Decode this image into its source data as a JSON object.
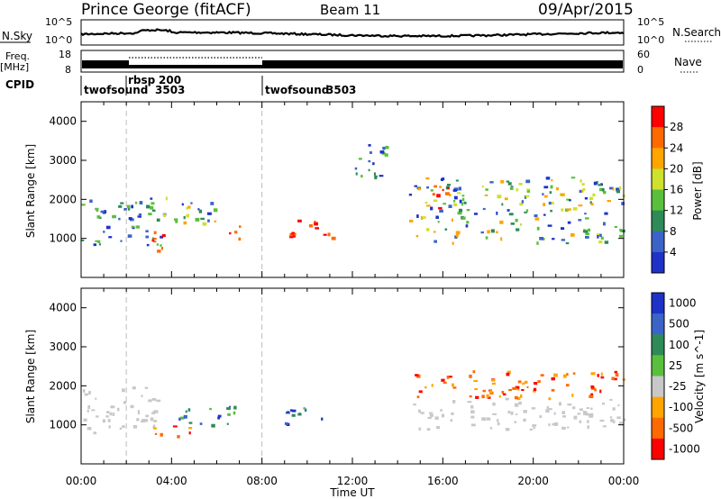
{
  "header": {
    "station": "Prince George (fitACF)",
    "beam": "Beam 11",
    "date": "09/Apr/2015"
  },
  "noise_panel": {
    "left_label": "N.Sky",
    "right_label": "N.Search",
    "left_ticks": [
      "10^5",
      "10^0"
    ],
    "right_ticks": [
      "10^5",
      "10^0"
    ]
  },
  "freq_panel": {
    "left_label_1": "Freq.",
    "left_label_2": "[MHz]",
    "right_label": "Nave",
    "left_ticks": [
      "18",
      "8"
    ],
    "right_ticks": [
      "60",
      "0"
    ]
  },
  "cpid": {
    "label": "CPID",
    "segments": [
      {
        "start": 0,
        "end": 2,
        "name": "twofsound",
        "id": "3503"
      },
      {
        "start": 2,
        "end": 8,
        "name": "rbsp",
        "id": "200"
      },
      {
        "start": 8,
        "end": 24,
        "name": "twofsound",
        "id": "3503"
      }
    ]
  },
  "colors": {
    "power": [
      "#1e32c8",
      "#3c64c8",
      "#2e8b57",
      "#5abf3c",
      "#cde12d",
      "#ffa500",
      "#ff6a00",
      "#ff0000"
    ],
    "velocity": [
      "#1e32c8",
      "#3c64c8",
      "#2e8b57",
      "#5abf3c",
      "#c8c8c8",
      "#ffa500",
      "#ff6a00",
      "#ff0000"
    ]
  },
  "chart_data": [
    {
      "type": "heatmap",
      "title": "Power",
      "ylabel": "Slant Range [km]",
      "ylim": [
        0,
        4500
      ],
      "xlim": [
        0,
        24
      ],
      "yticks": [
        "1000",
        "2000",
        "3000",
        "4000"
      ],
      "colorbar": {
        "label": "Power [dB]",
        "ticks": [
          "4",
          "8",
          "12",
          "16",
          "20",
          "24",
          "28"
        ],
        "range": [
          0,
          30
        ]
      },
      "echo_regions": [
        {
          "t0": 0.0,
          "t1": 3.5,
          "r0": 800,
          "r1": 2100,
          "level": "low"
        },
        {
          "t0": 2.5,
          "t1": 3.6,
          "r0": 600,
          "r1": 1200,
          "level": "high"
        },
        {
          "t0": 3.4,
          "t1": 6.0,
          "r0": 1400,
          "r1": 2200,
          "level": "mid"
        },
        {
          "t0": 6.5,
          "t1": 7.2,
          "r0": 900,
          "r1": 1400,
          "level": "high"
        },
        {
          "t0": 9.2,
          "t1": 11.2,
          "r0": 900,
          "r1": 1500,
          "level": "high"
        },
        {
          "t0": 12.0,
          "t1": 13.8,
          "r0": 2600,
          "r1": 3500,
          "level": "low"
        },
        {
          "t0": 14.5,
          "t1": 24.0,
          "r0": 900,
          "r1": 2600,
          "level": "mid"
        },
        {
          "t0": 15.5,
          "t1": 16.5,
          "r0": 1800,
          "r1": 2400,
          "level": "high"
        }
      ]
    },
    {
      "type": "heatmap",
      "title": "Velocity",
      "xlabel": "Time UT",
      "ylabel": "Slant Range [km]",
      "ylim": [
        0,
        4500
      ],
      "xlim": [
        0,
        24
      ],
      "xticks": [
        "00:00",
        "04:00",
        "08:00",
        "12:00",
        "16:00",
        "20:00",
        "00:00"
      ],
      "yticks": [
        "1000",
        "2000",
        "3000",
        "4000"
      ],
      "colorbar": {
        "label": "Velocity [m s^-1]",
        "ticks": [
          "1000",
          "500",
          "100",
          "25",
          "-25",
          "-100",
          "-500",
          "-1000"
        ]
      },
      "echo_regions": [
        {
          "t0": 0.0,
          "t1": 3.5,
          "r0": 800,
          "r1": 2000,
          "level": "ground"
        },
        {
          "t0": 3.0,
          "t1": 5.0,
          "r0": 700,
          "r1": 1000,
          "level": "neg"
        },
        {
          "t0": 4.0,
          "t1": 7.0,
          "r0": 1000,
          "r1": 1500,
          "level": "pos"
        },
        {
          "t0": 9.0,
          "t1": 11.0,
          "r0": 900,
          "r1": 1500,
          "level": "pos"
        },
        {
          "t0": 14.5,
          "t1": 24.0,
          "r0": 1700,
          "r1": 2400,
          "level": "neg"
        },
        {
          "t0": 14.5,
          "t1": 24.0,
          "r0": 900,
          "r1": 1700,
          "level": "ground"
        }
      ]
    }
  ]
}
